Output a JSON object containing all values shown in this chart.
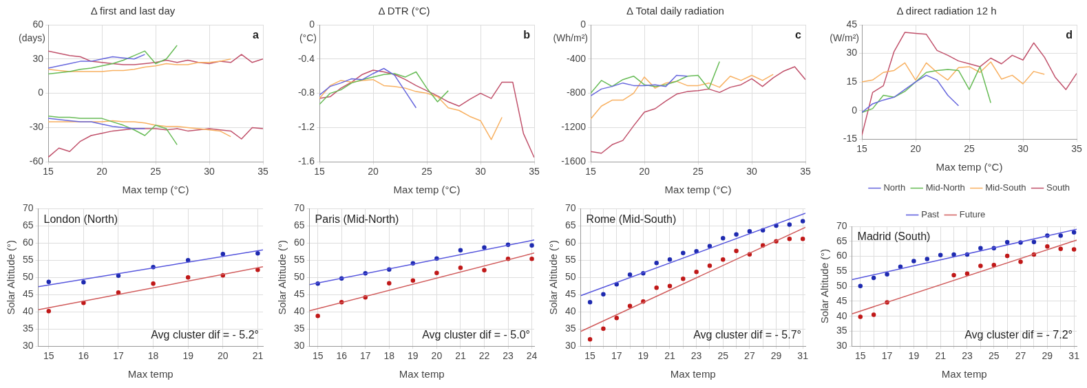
{
  "chart_data": [
    {
      "type": "line",
      "title": "Δ first and last day",
      "xlabel": "Max temp (°C)",
      "ylabel": "(days)",
      "annotations": [
        "a"
      ],
      "grid": true,
      "x": [
        15,
        16,
        17,
        18,
        19,
        20,
        21,
        22,
        23,
        24,
        25,
        26,
        27,
        28,
        29,
        30,
        31,
        32,
        33,
        34,
        35
      ],
      "xlim": [
        15,
        35
      ],
      "xticks": [
        15,
        20,
        25,
        30,
        35
      ],
      "ylim": [
        -60,
        60
      ],
      "yticks": [
        -60,
        -30,
        0,
        30,
        60
      ],
      "series": [
        {
          "color": "#6666dd",
          "values": [
            22,
            24,
            26,
            28,
            28,
            30,
            32,
            31,
            30,
            34,
            null,
            null,
            null,
            null,
            null,
            null,
            null,
            null,
            null,
            null,
            null
          ]
        },
        {
          "color": "#6666dd",
          "values": [
            -22,
            -23,
            -24,
            -25,
            -25,
            -27,
            -29,
            -30,
            -31,
            -31,
            null,
            null,
            null,
            null,
            null,
            null,
            null,
            null,
            null,
            null,
            null
          ]
        },
        {
          "color": "#66bb55",
          "values": [
            17,
            18,
            19,
            21,
            22,
            24,
            26,
            29,
            33,
            37,
            26,
            30,
            42,
            null,
            null,
            null,
            null,
            null,
            null,
            null,
            null
          ]
        },
        {
          "color": "#66bb55",
          "values": [
            -20,
            -21,
            -21,
            -22,
            -22,
            -22,
            -25,
            -28,
            -32,
            -37,
            -28,
            -31,
            -45,
            null,
            null,
            null,
            null,
            null,
            null,
            null,
            null
          ]
        },
        {
          "color": "#f8b060",
          "values": [
            21,
            20,
            19,
            19,
            19,
            19,
            20,
            20,
            21,
            23,
            24,
            26,
            25,
            25,
            27,
            27,
            28,
            30,
            null,
            null,
            null
          ]
        },
        {
          "color": "#f8b060",
          "values": [
            -25,
            -25,
            -25,
            -25,
            -25,
            -25,
            -24,
            -25,
            -25,
            -26,
            -28,
            -29,
            -29,
            -30,
            -31,
            -32,
            -33,
            -38,
            null,
            null,
            null
          ]
        },
        {
          "color": "#c0506a",
          "values": [
            37,
            35,
            33,
            32,
            28,
            27,
            26,
            25,
            25,
            26,
            27,
            29,
            27,
            29,
            27,
            26,
            28,
            27,
            34,
            27,
            30
          ]
        },
        {
          "color": "#c0506a",
          "values": [
            -56,
            -48,
            -51,
            -42,
            -37,
            -35,
            -33,
            -32,
            -31,
            -31,
            -31,
            -32,
            -31,
            -33,
            -32,
            -31,
            -32,
            -33,
            -40,
            -30,
            -31
          ]
        }
      ]
    },
    {
      "type": "line",
      "title": "Δ DTR (°C)",
      "xlabel": "Max temp (°C)",
      "ylabel": "(°C)",
      "annotations": [
        "b"
      ],
      "grid": true,
      "x": [
        15,
        16,
        17,
        18,
        19,
        20,
        21,
        22,
        23,
        24,
        25,
        26,
        27,
        28,
        29,
        30,
        31,
        32,
        33,
        34,
        35
      ],
      "xlim": [
        15,
        35
      ],
      "xticks": [
        15,
        20,
        25,
        30,
        35
      ],
      "ylim": [
        -1.6,
        0
      ],
      "yticks": [
        -1.6,
        -1.2,
        -0.8,
        -0.4,
        0
      ],
      "series": [
        {
          "color": "#6666dd",
          "values": [
            -0.82,
            -0.72,
            -0.68,
            -0.63,
            -0.64,
            -0.57,
            -0.51,
            -0.59,
            -0.78,
            -0.97,
            null,
            null,
            null,
            null,
            null,
            null,
            null,
            null,
            null,
            null,
            null
          ]
        },
        {
          "color": "#66bb55",
          "values": [
            -0.93,
            -0.8,
            -0.76,
            -0.68,
            -0.64,
            -0.61,
            -0.58,
            -0.57,
            -0.61,
            -0.55,
            -0.74,
            -0.9,
            -0.77,
            null,
            null,
            null,
            null,
            null,
            null,
            null,
            null
          ]
        },
        {
          "color": "#f8b060",
          "values": [
            -0.86,
            -0.71,
            -0.65,
            -0.67,
            -0.65,
            -0.64,
            -0.71,
            -0.72,
            -0.74,
            -0.78,
            -0.8,
            -0.84,
            -0.97,
            -1.0,
            -1.07,
            -1.12,
            -1.34,
            -1.08,
            null,
            null,
            null
          ]
        },
        {
          "color": "#c0506a",
          "values": [
            -0.86,
            -0.84,
            -0.74,
            -0.67,
            -0.58,
            -0.53,
            -0.55,
            -0.58,
            -0.64,
            -0.71,
            -0.77,
            -0.83,
            -0.9,
            -0.95,
            -0.87,
            -0.8,
            -0.86,
            -0.67,
            -0.67,
            -1.27,
            -1.55
          ]
        }
      ]
    },
    {
      "type": "line",
      "title": "Δ Total daily radiation",
      "xlabel": "Max temp (°C)",
      "ylabel": "(Wh/m²)",
      "annotations": [
        "c"
      ],
      "grid": true,
      "x": [
        15,
        16,
        17,
        18,
        19,
        20,
        21,
        22,
        23,
        24,
        25,
        26,
        27,
        28,
        29,
        30,
        31,
        32,
        33,
        34,
        35
      ],
      "xlim": [
        15,
        35
      ],
      "xticks": [
        15,
        20,
        25,
        30,
        35
      ],
      "ylim": [
        -1600,
        0
      ],
      "yticks": [
        -1600,
        -1200,
        -800,
        -400,
        0
      ],
      "series": [
        {
          "color": "#6666dd",
          "values": [
            -830,
            -750,
            -720,
            -680,
            -710,
            -710,
            -700,
            -720,
            -590,
            -600,
            null,
            null,
            null,
            null,
            null,
            null,
            null,
            null,
            null,
            null,
            null
          ]
        },
        {
          "color": "#66bb55",
          "values": [
            -800,
            -650,
            -720,
            -640,
            -600,
            -700,
            -720,
            -700,
            -660,
            -600,
            -590,
            -750,
            -430,
            null,
            null,
            null,
            null,
            null,
            null,
            null,
            null
          ]
        },
        {
          "color": "#f8b060",
          "values": [
            -1100,
            -950,
            -880,
            -880,
            -800,
            -610,
            -740,
            -680,
            -660,
            -710,
            -710,
            -680,
            -730,
            -600,
            -650,
            -590,
            -650,
            -580,
            null,
            null,
            null
          ]
        },
        {
          "color": "#c0506a",
          "values": [
            -1480,
            -1500,
            -1400,
            -1350,
            -1180,
            -1020,
            -980,
            -890,
            -810,
            -780,
            -770,
            -750,
            -790,
            -730,
            -700,
            -630,
            -720,
            -620,
            -540,
            -490,
            -640
          ]
        }
      ]
    },
    {
      "type": "line",
      "title": "Δ direct radiation 12 h",
      "xlabel": "Max temp (°C)",
      "ylabel": "(W/m²)",
      "annotations": [
        "d"
      ],
      "grid": true,
      "legend": "bottom right",
      "x": [
        15,
        16,
        17,
        18,
        19,
        20,
        21,
        22,
        23,
        24,
        25,
        26,
        27,
        28,
        29,
        30,
        31,
        32,
        33,
        34,
        35
      ],
      "xlim": [
        15,
        35
      ],
      "xticks": [
        15,
        20,
        25,
        30,
        35
      ],
      "ylim": [
        -15,
        45
      ],
      "yticks": [
        -15,
        0,
        15,
        30,
        45
      ],
      "series": [
        {
          "name": "North",
          "color": "#6666dd",
          "values": [
            -1,
            3.5,
            5.5,
            7,
            11,
            15,
            18.5,
            16,
            8,
            2.5,
            null,
            null,
            null,
            null,
            null,
            null,
            null,
            null,
            null,
            null,
            null
          ]
        },
        {
          "name": "Mid-North",
          "color": "#66bb55",
          "values": [
            -1,
            1,
            8,
            7,
            10,
            15,
            20,
            21,
            21.5,
            21,
            11,
            23,
            4,
            null,
            null,
            null,
            null,
            null,
            null,
            null,
            null
          ]
        },
        {
          "name": "Mid-South",
          "color": "#f8b060",
          "values": [
            15,
            16,
            20,
            21,
            25,
            16,
            25,
            20,
            16,
            22.5,
            23,
            20,
            25.5,
            16.5,
            18.5,
            14,
            20.5,
            19,
            null,
            null,
            null
          ]
        },
        {
          "name": "South",
          "color": "#c0506a",
          "values": [
            -13,
            9.5,
            13,
            31,
            41,
            40.5,
            40,
            31.5,
            29,
            26,
            24.5,
            23,
            27.5,
            24.5,
            29,
            26.5,
            35.5,
            28,
            17.5,
            11,
            19.5
          ]
        }
      ]
    },
    {
      "type": "scatter",
      "xlabel": "Max temp",
      "ylabel": "Solar Altitude (°)",
      "annotations": [
        "London (North)",
        "Avg cluster dif = - 5.2°"
      ],
      "grid": true,
      "xlim": [
        14.7,
        21.15
      ],
      "xticks": [
        15,
        16,
        17,
        18,
        19,
        20,
        21
      ],
      "ylim": [
        30,
        70
      ],
      "yticks": [
        30,
        35,
        40,
        45,
        50,
        55,
        60,
        65,
        70
      ],
      "series": [
        {
          "type": "line",
          "color": "#5555dd",
          "x": [
            14.7,
            21.15
          ],
          "values": [
            47.3,
            58
          ]
        },
        {
          "type": "line",
          "color": "#d05a5a",
          "x": [
            14.7,
            21.15
          ],
          "values": [
            40.6,
            53.1
          ]
        },
        {
          "color": "#1e2ab0",
          "marker": "circle",
          "x": [
            15,
            16,
            17,
            18,
            19,
            20,
            21
          ],
          "values": [
            48.7,
            48.6,
            50.5,
            53,
            55,
            56.8,
            57
          ]
        },
        {
          "color": "#c01818",
          "marker": "circle",
          "x": [
            15,
            16,
            17,
            18,
            19,
            20,
            21
          ],
          "values": [
            40.2,
            42.6,
            45.6,
            48.2,
            50,
            50.6,
            52.2
          ]
        }
      ]
    },
    {
      "type": "scatter",
      "xlabel": "Max temp",
      "ylabel": "Solar Altitude (°)",
      "annotations": [
        "Paris (Mid-North)",
        "Avg cluster dif = - 5.0°"
      ],
      "grid": true,
      "xlim": [
        14.65,
        24.1
      ],
      "xticks": [
        15,
        16,
        17,
        18,
        19,
        20,
        21,
        22,
        23,
        24
      ],
      "ylim": [
        30,
        70
      ],
      "yticks": [
        30,
        35,
        40,
        45,
        50,
        55,
        60,
        65,
        70
      ],
      "series": [
        {
          "type": "line",
          "color": "#5555dd",
          "x": [
            14.65,
            24.1
          ],
          "values": [
            47.9,
            60.9
          ]
        },
        {
          "type": "line",
          "color": "#d05a5a",
          "x": [
            14.65,
            24.1
          ],
          "values": [
            40.3,
            57.1
          ]
        },
        {
          "color": "#1e2ab0",
          "marker": "circle",
          "x": [
            15,
            16,
            17,
            18,
            19,
            20,
            21,
            22,
            23,
            24
          ],
          "values": [
            48.2,
            49.7,
            51.2,
            52.3,
            54.1,
            55.5,
            57.9,
            58.7,
            59.5,
            59.3
          ]
        },
        {
          "color": "#c01818",
          "marker": "circle",
          "x": [
            15,
            16,
            17,
            18,
            19,
            20,
            21,
            22,
            23,
            24
          ],
          "values": [
            38.8,
            42.8,
            44.2,
            48.3,
            49.1,
            51.3,
            52.8,
            52.1,
            55.4,
            55.4
          ]
        }
      ]
    },
    {
      "type": "scatter",
      "xlabel": "Max temp",
      "ylabel": "Solar Altitude (°)",
      "annotations": [
        "Rome (Mid-South)",
        "Avg cluster dif = - 5.7°"
      ],
      "grid": true,
      "xlim": [
        14.3,
        31.2
      ],
      "xticks": [
        15,
        {
          "value": 16,
          "label": null
        },
        17,
        {
          "value": 18,
          "label": null
        },
        19,
        {
          "value": 20,
          "label": null
        },
        21,
        {
          "value": 22,
          "label": null
        },
        23,
        {
          "value": 24,
          "label": null
        },
        25,
        {
          "value": 26,
          "label": null
        },
        27,
        {
          "value": 28,
          "label": null
        },
        29,
        {
          "value": 30,
          "label": null
        },
        31
      ],
      "ylim": [
        30,
        70
      ],
      "yticks": [
        30,
        35,
        40,
        45,
        50,
        55,
        60,
        65,
        70
      ],
      "series": [
        {
          "type": "line",
          "color": "#5555dd",
          "x": [
            14.3,
            31.2
          ],
          "values": [
            44.7,
            68.7
          ]
        },
        {
          "type": "line",
          "color": "#d05a5a",
          "x": [
            14.3,
            31.2
          ],
          "values": [
            34.3,
            64.6
          ]
        },
        {
          "color": "#1e2ab0",
          "marker": "circle",
          "x": [
            15,
            16,
            17,
            18,
            19,
            20,
            21,
            22,
            23,
            24,
            25,
            26,
            27,
            28,
            29,
            30,
            31
          ],
          "values": [
            42.8,
            45.1,
            48,
            50.8,
            51.2,
            54.2,
            55.2,
            57.1,
            57.6,
            59.1,
            61.4,
            62.5,
            63.4,
            63.7,
            65.1,
            65.4,
            66.4
          ]
        },
        {
          "color": "#c01818",
          "marker": "circle",
          "x": [
            15,
            16,
            17,
            18,
            19,
            20,
            21,
            22,
            23,
            24,
            25,
            26,
            27,
            28,
            29,
            30,
            31
          ],
          "values": [
            32,
            35.1,
            38.2,
            41.7,
            43,
            47,
            47.5,
            49.6,
            51.6,
            53.4,
            55.2,
            57.7,
            56.7,
            59.3,
            60.5,
            61.2,
            61.2
          ]
        }
      ]
    },
    {
      "type": "scatter",
      "xlabel": "Max temp",
      "ylabel": "Solar Altitude (°)",
      "annotations": [
        "Madrid (South)",
        "Avg cluster dif = - 7.2°"
      ],
      "grid": true,
      "legend": "top",
      "xlim": [
        14.37,
        31.2
      ],
      "xticks": [
        15,
        {
          "value": 16,
          "label": null
        },
        17,
        {
          "value": 18,
          "label": null
        },
        19,
        {
          "value": 20,
          "label": null
        },
        21,
        {
          "value": 22,
          "label": null
        },
        23,
        {
          "value": 24,
          "label": null
        },
        25,
        {
          "value": 26,
          "label": null
        },
        27,
        {
          "value": 28,
          "label": null
        },
        29,
        {
          "value": 30,
          "label": null
        },
        31
      ],
      "ylim": [
        30,
        70
      ],
      "yticks": [
        30,
        35,
        40,
        45,
        50,
        55,
        60,
        65,
        70
      ],
      "series": [
        {
          "type": "line",
          "name": "Past",
          "color": "#5555dd",
          "x": [
            14.37,
            31.2
          ],
          "values": [
            52.2,
            69
          ]
        },
        {
          "type": "line",
          "name": "Future",
          "color": "#d05a5a",
          "x": [
            14.37,
            31.2
          ],
          "values": [
            40.8,
            65.4
          ]
        },
        {
          "color": "#1e2ab0",
          "marker": "circle",
          "x": [
            15,
            16,
            17,
            18,
            19,
            20,
            21,
            22,
            23,
            24,
            25,
            26,
            27,
            28,
            29,
            30,
            31
          ],
          "values": [
            50.1,
            52.8,
            54,
            56.5,
            58.4,
            59.1,
            60.4,
            60.6,
            60.6,
            62.7,
            62.7,
            64.7,
            64.6,
            64.8,
            66.9,
            66.9,
            68
          ]
        },
        {
          "color": "#c01818",
          "marker": "circle",
          "x": [
            15,
            16,
            17,
            18,
            19,
            20,
            21,
            22,
            23,
            24,
            25,
            26,
            27,
            28,
            29,
            30,
            31
          ],
          "values": [
            39.8,
            40.5,
            44.6,
            null,
            null,
            null,
            null,
            53.7,
            54.2,
            56.8,
            57.1,
            60.1,
            58.2,
            60.6,
            63.3,
            62.5,
            62.3
          ]
        }
      ]
    }
  ]
}
